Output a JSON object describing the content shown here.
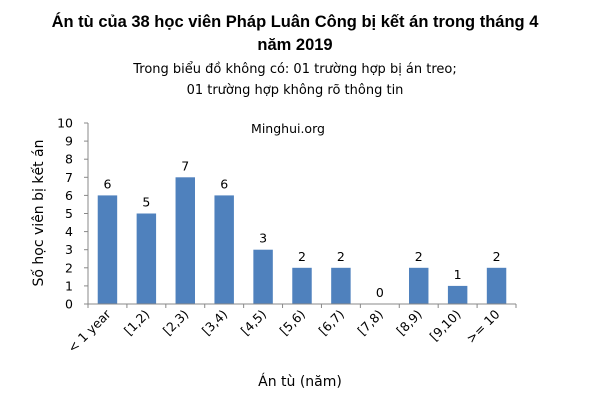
{
  "chart_data": {
    "type": "bar",
    "title_lines": [
      "Án tù của 38 học viên Pháp Luân Công bị kết án trong tháng 4",
      "năm 2019"
    ],
    "subtitle_lines": [
      "Trong biểu đồ không có: 01 trường hợp bị án treo;",
      "01 trường hợp không rõ thông tin"
    ],
    "watermark": "Minghui.org",
    "xlabel": "Án tù (năm)",
    "ylabel": "Số học viên bị kết án",
    "categories": [
      "< 1 year",
      "[1,2)",
      "[2,3)",
      "[3,4)",
      "[4,5)",
      "[5,6)",
      "[6,7)",
      "[7,8)",
      "[8,9)",
      "[9,10)",
      ">= 10"
    ],
    "values": [
      6,
      5,
      7,
      6,
      3,
      2,
      2,
      0,
      2,
      1,
      2
    ],
    "ylim": [
      0,
      10
    ],
    "yticks": [
      0,
      1,
      2,
      3,
      4,
      5,
      6,
      7,
      8,
      9,
      10
    ],
    "grid": false,
    "legend": "none",
    "bar_color": "#4f81bd"
  }
}
